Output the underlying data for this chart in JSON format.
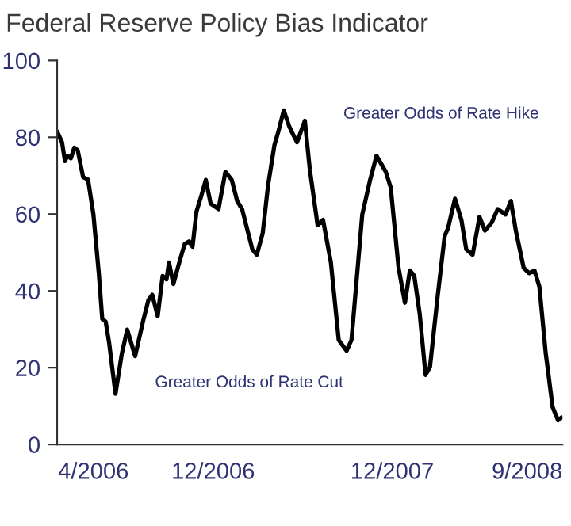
{
  "chart_data": {
    "type": "line",
    "title": "Federal Reserve Policy Bias Indicator",
    "annotations": [
      "Greater Odds of Rate Hike",
      "Greater Odds of Rate Cut"
    ],
    "x": [
      "2006-01-17",
      "2006-01-27",
      "2006-02-02",
      "2006-02-07",
      "2006-02-14",
      "2006-02-21",
      "2006-02-28",
      "2006-03-11",
      "2006-03-21",
      "2006-04-01",
      "2006-04-12",
      "2006-04-19",
      "2006-04-26",
      "2006-05-03",
      "2006-05-16",
      "2006-05-29",
      "2006-06-09",
      "2006-06-25",
      "2006-07-11",
      "2006-07-22",
      "2006-07-30",
      "2006-08-10",
      "2006-08-20",
      "2006-08-28",
      "2006-09-02",
      "2006-09-11",
      "2006-09-23",
      "2006-10-04",
      "2006-10-13",
      "2006-10-20",
      "2006-10-28",
      "2006-11-07",
      "2006-11-16",
      "2006-11-26",
      "2006-12-12",
      "2006-12-26",
      "2007-01-08",
      "2007-01-19",
      "2007-01-29",
      "2007-02-19",
      "2007-02-28",
      "2007-03-12",
      "2007-03-23",
      "2007-04-05",
      "2007-04-13",
      "2007-04-24",
      "2007-05-05",
      "2007-05-10",
      "2007-05-21",
      "2007-06-06",
      "2007-06-16",
      "2007-07-02",
      "2007-07-13",
      "2007-07-29",
      "2007-08-14",
      "2007-08-30",
      "2007-09-09",
      "2007-10-01",
      "2007-10-17",
      "2007-10-30",
      "2007-11-18",
      "2007-11-28",
      "2007-12-14",
      "2007-12-27",
      "2008-01-06",
      "2008-01-15",
      "2008-01-26",
      "2008-02-07",
      "2008-02-16",
      "2008-03-03",
      "2008-03-17",
      "2008-03-24",
      "2008-04-07",
      "2008-04-20",
      "2008-04-30",
      "2008-05-13",
      "2008-05-27",
      "2008-06-07",
      "2008-06-21",
      "2008-07-03",
      "2008-07-19",
      "2008-07-30",
      "2008-08-09",
      "2008-08-25",
      "2008-09-05",
      "2008-09-16",
      "2008-09-26",
      "2008-10-09",
      "2008-10-23",
      "2008-11-03",
      "2008-11-10"
    ],
    "series": [
      {
        "color": "#000000",
        "values": [
          81.5,
          78.7,
          73.8,
          75.2,
          74.5,
          77.3,
          76.6,
          69.6,
          69,
          59.9,
          44.6,
          32.7,
          32,
          26.5,
          13.2,
          23.7,
          29.9,
          23,
          32,
          37.6,
          39,
          33.4,
          43.9,
          43,
          47.4,
          41.8,
          47.4,
          52.2,
          52.9,
          51.5,
          60.6,
          64.8,
          68.9,
          62.7,
          61.3,
          71,
          68.9,
          63.4,
          61.3,
          50.8,
          49.4,
          55,
          67.5,
          78,
          81.5,
          87,
          82.9,
          81.5,
          78.7,
          84.3,
          71.7,
          57.1,
          58.5,
          47.4,
          27.2,
          24.4,
          27.2,
          59.9,
          68.9,
          75.2,
          71,
          66.9,
          46,
          36.9,
          45.3,
          43.9,
          34.1,
          18.1,
          20.2,
          39,
          54.3,
          56.4,
          64,
          58.5,
          50.8,
          49.4,
          59.3,
          55.7,
          57.8,
          61.3,
          59.9,
          63.4,
          55.7,
          46,
          44.6,
          45.3,
          41.1,
          23.7,
          9.7,
          6.3,
          7
        ]
      }
    ],
    "xlim": [
      "2006-01-17",
      "2008-11-12"
    ],
    "xticks": [
      {
        "value": "2006-04-01",
        "label": "4/2006"
      },
      {
        "value": "2006-12-01",
        "label": "12/2006"
      },
      {
        "value": "2007-12-01",
        "label": "12/2007"
      },
      {
        "value": "2008-09-01",
        "label": "9/2008"
      }
    ],
    "ylim": [
      0,
      100
    ],
    "yticks": [
      0,
      20,
      40,
      60,
      80,
      100
    ],
    "grid": false
  }
}
